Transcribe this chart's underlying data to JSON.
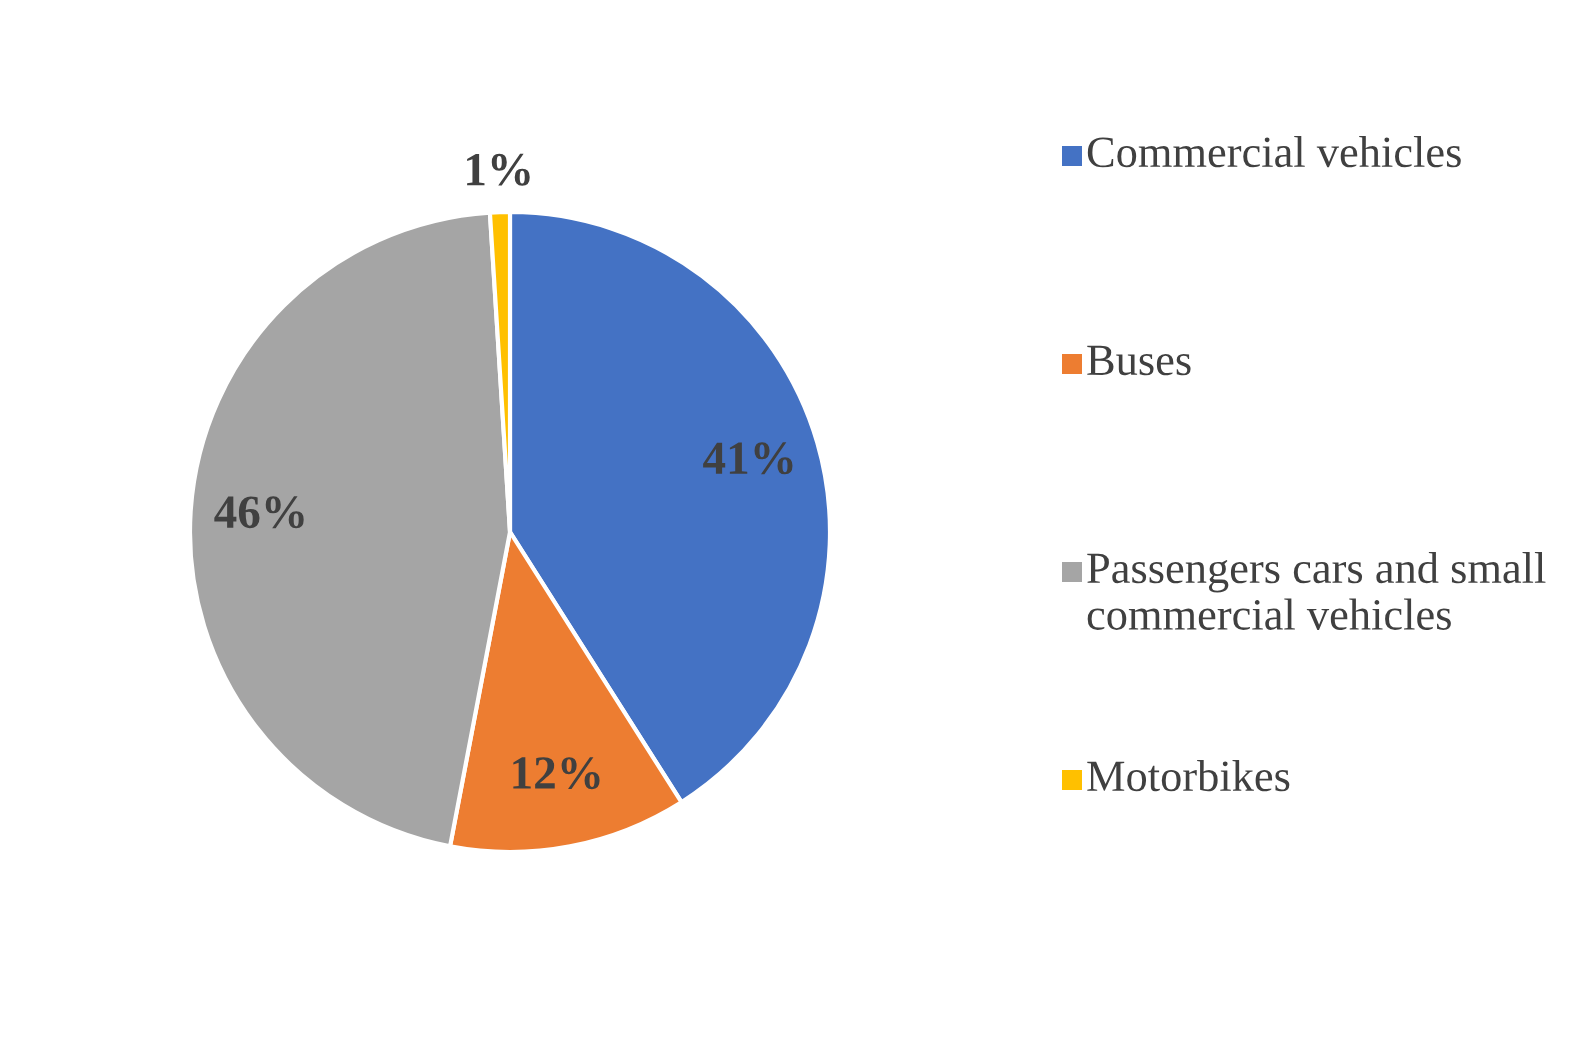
{
  "chart_data": {
    "type": "pie",
    "categories": [
      "Commercial vehicles",
      "Buses",
      "Passengers cars and small commercial vehicles",
      "Motorbikes"
    ],
    "values": [
      41,
      12,
      46,
      1
    ],
    "colors": [
      "#4472c4",
      "#ed7d31",
      "#a5a5a5",
      "#ffc000"
    ],
    "value_labels": [
      "41%",
      "12%",
      "46%",
      "1%"
    ],
    "legend": "right"
  }
}
